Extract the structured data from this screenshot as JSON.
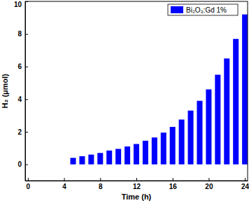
{
  "chart_data": {
    "type": "bar",
    "x_label": "Time (h)",
    "y_label": "H₂ (μmol)",
    "x": [
      0,
      1,
      2,
      3,
      4,
      5,
      6,
      7,
      8,
      9,
      10,
      11,
      12,
      13,
      14,
      15,
      16,
      17,
      18,
      19,
      20,
      21,
      22,
      23,
      24
    ],
    "series": [
      {
        "name": "Bi₂O₃:Gd 1%",
        "color": "#0000ff",
        "values": [
          0,
          0,
          0,
          0,
          0,
          0.4,
          0.5,
          0.6,
          0.7,
          0.85,
          0.95,
          1.1,
          1.25,
          1.45,
          1.65,
          1.95,
          2.3,
          2.75,
          3.3,
          3.9,
          4.6,
          5.5,
          6.5,
          7.7,
          9.2
        ]
      }
    ],
    "xlim": [
      -0.3,
      24.3
    ],
    "xticks": [
      0,
      4,
      8,
      12,
      16,
      20,
      24
    ],
    "ylim": [
      -1,
      10
    ],
    "yticks": [
      0,
      2,
      4,
      6,
      8,
      10
    ],
    "legend": "upper right"
  }
}
